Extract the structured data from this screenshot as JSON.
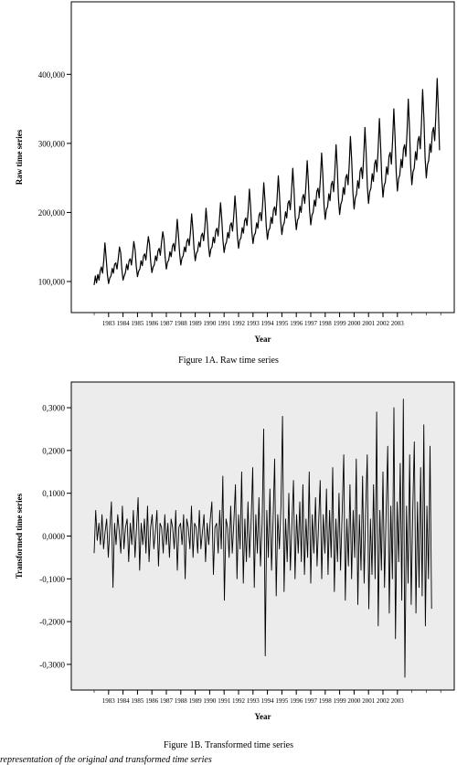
{
  "chart_data": [
    {
      "type": "line",
      "title": "",
      "caption": "Figure 1A. Raw time series",
      "xlabel": "Year",
      "ylabel": "Raw time series",
      "ylim": [
        55000,
        505000
      ],
      "y_ticks": [
        {
          "value": 100000,
          "label": "100,000"
        },
        {
          "value": 200000,
          "label": "200,000"
        },
        {
          "value": 300000,
          "label": "300,000"
        },
        {
          "value": 400000,
          "label": "400,000"
        }
      ],
      "x_ticks": [
        "1983",
        "1984",
        "1985",
        "1986",
        "1987",
        "1988",
        "1989",
        "1990",
        "1991",
        "1992",
        "1993",
        "1994",
        "1995",
        "1996",
        "1997",
        "1998",
        "1999",
        "2000",
        "2001",
        "2002",
        "2003"
      ],
      "x_start": 1982.0,
      "grid": false,
      "background": "#ffffff",
      "line_color": "#000000",
      "series": [
        {
          "frequency": "monthly",
          "values": [
            95000,
            108000,
            98000,
            110000,
            102000,
            115000,
            121000,
            112000,
            130000,
            156000,
            133000,
            110000,
            97000,
            105000,
            108000,
            119000,
            112000,
            125000,
            127000,
            118000,
            132000,
            150000,
            142000,
            118000,
            102000,
            108000,
            113000,
            125000,
            117000,
            130000,
            133000,
            124000,
            140000,
            158000,
            146000,
            122000,
            107000,
            115000,
            118000,
            130000,
            123000,
            137000,
            140000,
            131000,
            148000,
            165000,
            154000,
            128000,
            113000,
            121000,
            124000,
            137000,
            130000,
            144000,
            148000,
            138000,
            156000,
            172000,
            161000,
            135000,
            118000,
            128000,
            131000,
            143000,
            136000,
            151000,
            155000,
            144000,
            162000,
            190000,
            168000,
            141000,
            124000,
            134000,
            137000,
            150000,
            143000,
            158000,
            162000,
            152000,
            170000,
            198000,
            176000,
            147000,
            130000,
            141000,
            144000,
            157000,
            150000,
            166000,
            170000,
            159000,
            178000,
            206000,
            183000,
            153000,
            136000,
            147000,
            150000,
            164000,
            156000,
            173000,
            177000,
            166000,
            186000,
            214000,
            191000,
            160000,
            142000,
            153000,
            157000,
            171000,
            163000,
            181000,
            185000,
            173000,
            194000,
            224000,
            199000,
            166000,
            148000,
            160000,
            163000,
            178000,
            170000,
            188000,
            192000,
            181000,
            202000,
            234000,
            208000,
            173000,
            155000,
            167000,
            170000,
            185000,
            177000,
            196000,
            200000,
            188000,
            210000,
            243000,
            216000,
            180000,
            161000,
            174000,
            177000,
            193000,
            184000,
            204000,
            208000,
            196000,
            219000,
            253000,
            225000,
            187000,
            168000,
            181000,
            185000,
            201000,
            192000,
            213000,
            217000,
            204000,
            229000,
            264000,
            235000,
            195000,
            175000,
            189000,
            192000,
            209000,
            200000,
            221000,
            226000,
            213000,
            238000,
            275000,
            244000,
            203000,
            182000,
            196000,
            200000,
            218000,
            209000,
            230000,
            235000,
            221000,
            248000,
            286000,
            254000,
            211000,
            190000,
            204000,
            208000,
            227000,
            217000,
            240000,
            245000,
            230000,
            258000,
            298000,
            265000,
            220000,
            197000,
            212000,
            217000,
            236000,
            226000,
            250000,
            255000,
            240000,
            269000,
            310000,
            275000,
            229000,
            205000,
            221000,
            226000,
            246000,
            235000,
            260000,
            265000,
            249000,
            280000,
            323000,
            286000,
            238000,
            213000,
            230000,
            235000,
            256000,
            245000,
            270000,
            276000,
            259000,
            291000,
            336000,
            298000,
            248000,
            222000,
            239000,
            244000,
            266000,
            255000,
            281000,
            287000,
            270000,
            303000,
            350000,
            310000,
            258000,
            231000,
            249000,
            254000,
            277000,
            265000,
            292000,
            298000,
            281000,
            315000,
            364000,
            323000,
            268000,
            240000,
            259000,
            264000,
            288000,
            276000,
            304000,
            310000,
            292000,
            328000,
            378000,
            336000,
            279000,
            250000,
            269000,
            275000,
            299000,
            287000,
            316000,
            323000,
            304000,
            341000,
            394000,
            349000,
            290000
          ]
        }
      ]
    },
    {
      "type": "line",
      "title": "",
      "caption": "Figure 1B. Transformed time series",
      "xlabel": "Year",
      "ylabel": "Transformed time series",
      "ylim": [
        -0.36,
        0.36
      ],
      "y_ticks": [
        {
          "value": 0.3,
          "label": "0,3000"
        },
        {
          "value": 0.2,
          "label": "0,2000"
        },
        {
          "value": 0.1,
          "label": "0,1000"
        },
        {
          "value": 0.0,
          "label": "0,0000"
        },
        {
          "value": -0.1,
          "label": "-0,1000"
        },
        {
          "value": -0.2,
          "label": "-0,2000"
        },
        {
          "value": -0.3,
          "label": "-0,3000"
        }
      ],
      "x_ticks": [
        "1983",
        "1984",
        "1985",
        "1986",
        "1987",
        "1988",
        "1989",
        "1990",
        "1991",
        "1992",
        "1993",
        "1994",
        "1995",
        "1996",
        "1997",
        "1998",
        "1999",
        "2000",
        "2001",
        "2002",
        "2003"
      ],
      "x_start": 1982.0,
      "grid": false,
      "background": "#ececec",
      "line_color": "#000000",
      "series": [
        {
          "frequency": "weekly",
          "values": [
            -0.04,
            0.06,
            -0.01,
            0.03,
            -0.02,
            0.05,
            -0.03,
            0.01,
            0.04,
            -0.05,
            0.02,
            0.08,
            -0.12,
            0.03,
            -0.02,
            0.05,
            0.01,
            -0.04,
            0.07,
            -0.03,
            0.02,
            0.04,
            -0.06,
            0.03,
            -0.02,
            0.06,
            -0.05,
            0.02,
            0.09,
            -0.08,
            0.03,
            -0.02,
            0.04,
            -0.04,
            0.07,
            -0.06,
            0.02,
            0.05,
            -0.03,
            0.01,
            0.06,
            -0.07,
            0.03,
            0.02,
            -0.04,
            0.05,
            -0.02,
            0.03,
            -0.05,
            0.04,
            0.02,
            -0.03,
            0.06,
            -0.08,
            0.02,
            0.03,
            -0.02,
            0.05,
            -0.1,
            0.04,
            0.02,
            -0.03,
            0.07,
            -0.05,
            0.03,
            0.02,
            -0.04,
            0.06,
            -0.03,
            0.01,
            0.05,
            -0.06,
            0.03,
            -0.02,
            0.04,
            0.08,
            -0.09,
            0.02,
            0.03,
            -0.04,
            0.06,
            -0.03,
            0.14,
            -0.15,
            0.04,
            0.02,
            -0.05,
            0.07,
            -0.04,
            0.03,
            0.12,
            -0.1,
            0.05,
            -0.03,
            0.15,
            -0.11,
            0.04,
            -0.06,
            0.08,
            -0.05,
            0.03,
            0.16,
            -0.12,
            0.05,
            -0.04,
            0.09,
            -0.07,
            0.03,
            0.25,
            -0.28,
            0.06,
            -0.05,
            0.11,
            -0.08,
            0.04,
            0.18,
            -0.14,
            0.05,
            -0.03,
            0.07,
            0.28,
            -0.13,
            0.04,
            -0.06,
            0.1,
            -0.08,
            0.03,
            0.13,
            -0.1,
            0.05,
            -0.04,
            0.08,
            -0.06,
            0.12,
            -0.09,
            0.04,
            -0.05,
            0.15,
            -0.11,
            0.05,
            -0.04,
            0.09,
            -0.07,
            0.03,
            0.13,
            -0.1,
            0.05,
            -0.04,
            0.11,
            -0.09,
            0.06,
            -0.05,
            0.16,
            -0.13,
            0.04,
            -0.06,
            0.1,
            -0.08,
            0.05,
            0.19,
            -0.15,
            0.04,
            -0.07,
            0.12,
            -0.1,
            0.06,
            -0.05,
            0.18,
            -0.16,
            0.05,
            -0.08,
            0.14,
            -0.11,
            0.06,
            0.19,
            -0.17,
            0.04,
            -0.09,
            0.12,
            -0.1,
            0.29,
            -0.21,
            0.06,
            -0.08,
            0.15,
            -0.12,
            0.05,
            0.21,
            -0.18,
            0.07,
            -0.1,
            0.3,
            -0.24,
            0.08,
            -0.06,
            0.17,
            -0.15,
            0.32,
            -0.33,
            0.07,
            -0.11,
            0.19,
            -0.16,
            0.06,
            0.22,
            -0.18,
            0.08,
            -0.12,
            0.16,
            -0.14,
            0.26,
            -0.21,
            0.07,
            -0.1,
            0.21,
            -0.17
          ]
        }
      ]
    }
  ],
  "footnote": "representation of the original and transformed time series"
}
